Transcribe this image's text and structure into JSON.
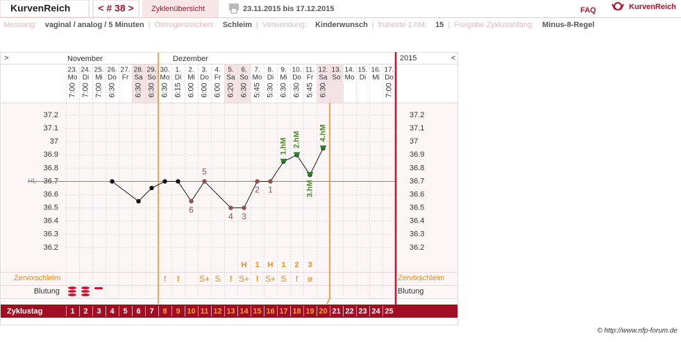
{
  "header": {
    "logo": "KurvenReich",
    "cycle_nav": "< # 38 >",
    "overview": "Zyklenübersicht",
    "date_range": "23.11.2015 bis 17.12.2015",
    "faq": "FAQ",
    "brand": "KurvenReich"
  },
  "info": {
    "separator": "|",
    "items": [
      {
        "label": "Messung:",
        "value": "vaginal / analog / 5 Minuten"
      },
      {
        "label": "Östrogenzeichen:",
        "value": "Schleim"
      },
      {
        "label": "Verwendung:",
        "value": "Kinderwunsch"
      },
      {
        "label": "früheste 1.hM:",
        "value": "15"
      },
      {
        "label": "Freigabe Zyklusanfang:",
        "value": "Minus-8-Regel"
      }
    ]
  },
  "chart_data": {
    "type": "nfp-cycle",
    "nav_left": ">",
    "nav_right": "<",
    "months": [
      "November",
      "Dezember"
    ],
    "year": "2015",
    "dates": [
      "23.",
      "24.",
      "25.",
      "26.",
      "27.",
      "28.",
      "29.",
      "30.",
      "1.",
      "2.",
      "3.",
      "4.",
      "5.",
      "6.",
      "7.",
      "8.",
      "9.",
      "10.",
      "11.",
      "12.",
      "13.",
      "14.",
      "15.",
      "16.",
      "17."
    ],
    "weekdays": [
      "Mo",
      "Di",
      "Mi",
      "Do",
      "Fr",
      "Sa",
      "So",
      "Mo",
      "Di",
      "Mi",
      "Do",
      "Fr",
      "Sa",
      "So",
      "Mo",
      "Di",
      "Mi",
      "Do",
      "Fr",
      "Sa",
      "So",
      "Mo",
      "Di",
      "Mi",
      "Do"
    ],
    "times": [
      "7:00",
      "7:00",
      "7:00",
      "6:30",
      null,
      "6:30",
      "6:30",
      "6:30",
      "6:15",
      "6:00",
      "6:00",
      "6:00",
      "6:20",
      "6:30",
      "5:45",
      "5:30",
      "6:30",
      "6:30",
      "5:45",
      "6:30",
      null,
      null,
      null,
      null,
      "7:00"
    ],
    "cycle_days": [
      1,
      2,
      3,
      4,
      5,
      6,
      7,
      8,
      9,
      10,
      11,
      12,
      13,
      14,
      15,
      16,
      17,
      18,
      19,
      20,
      21,
      22,
      23,
      24,
      25
    ],
    "cycle_day_label": "Zyklustag",
    "fertile_start_day": 8,
    "fertile_end_day": 20,
    "temperature": {
      "days": [
        4,
        6,
        7,
        8,
        9,
        10,
        11,
        13,
        14,
        15,
        16,
        17,
        18,
        19,
        20
      ],
      "values": [
        36.7,
        36.55,
        36.65,
        36.7,
        36.7,
        36.55,
        36.7,
        36.5,
        36.5,
        36.7,
        36.7,
        36.85,
        36.9,
        36.75,
        36.95
      ],
      "count_labels": [
        null,
        null,
        null,
        null,
        null,
        "6",
        "5",
        "4",
        "3",
        "2",
        "1",
        null,
        null,
        null,
        null
      ]
    },
    "high_measurements": {
      "days": [
        17,
        18,
        19,
        20
      ],
      "labels": [
        "1.hM",
        "2.hM",
        "3.hM",
        "4.hM"
      ]
    },
    "cover_line": {
      "label": "HL",
      "value": 36.7
    },
    "ylim": [
      36.1,
      37.3
    ],
    "yticks": [
      36.2,
      36.3,
      36.4,
      36.5,
      36.6,
      36.7,
      36.8,
      36.9,
      37,
      37.1,
      37.2
    ],
    "peak": [
      null,
      null,
      null,
      null,
      null,
      null,
      null,
      null,
      null,
      null,
      null,
      null,
      null,
      "H",
      "1",
      "H",
      "1",
      "2",
      "3",
      null,
      null,
      null,
      null,
      null,
      null
    ],
    "mucus_label": "Zervixschleim",
    "mucus": [
      null,
      null,
      null,
      null,
      null,
      null,
      null,
      "f",
      "f",
      null,
      "S+",
      "S",
      "f",
      "S+",
      "f",
      "S+",
      "S",
      "f",
      "ø",
      null,
      null,
      null,
      null,
      null,
      null
    ],
    "bleeding_label": "Blutung"
  },
  "footer": "© http://www.nfp-forum.de"
}
